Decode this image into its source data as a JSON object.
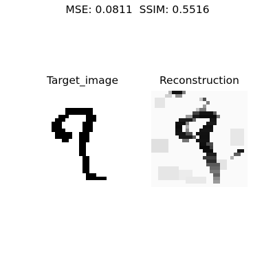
{
  "suptitle": "MSE: 0.0811  SSIM: 0.5516",
  "panels": {
    "target": {
      "title": "Target_image"
    },
    "reconstruction": {
      "title": "Reconstruction"
    }
  }
}
